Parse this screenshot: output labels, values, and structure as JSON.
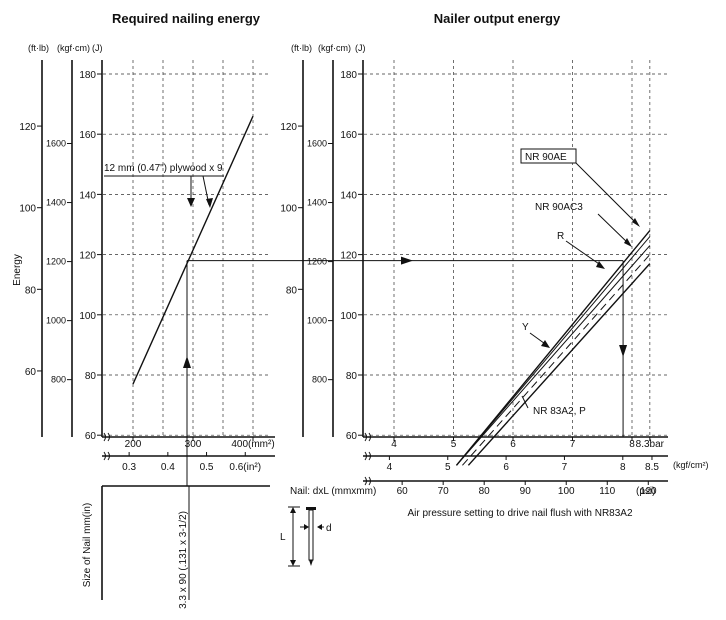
{
  "chart_data": [
    {
      "type": "line",
      "title": "Required nailing energy",
      "ylabel": "Energy",
      "y_units": {
        "ftlb": "(ft·lb)",
        "kgfcm": "(kgf·cm)",
        "j": "(J)"
      },
      "y_ticks_j": [
        "60",
        "80",
        "100",
        "120",
        "140",
        "160",
        "180"
      ],
      "y_ticks_kgfcm": [
        "800",
        "1000",
        "1200",
        "1400",
        "1600"
      ],
      "y_ticks_ftlb": [
        "60",
        "80",
        "100",
        "120"
      ],
      "x_ticks_mm2": [
        "200",
        "300",
        "400(mm²)"
      ],
      "x_ticks_in2": [
        "0.3",
        "0.4",
        "0.5",
        "0.6(in²)"
      ],
      "ylim_j": [
        50,
        186
      ],
      "xlim_mm2": [
        170,
        410
      ],
      "series": [
        {
          "name": "12 mm (0.47\") plywood x 9",
          "x_mm2": [
            200,
            400
          ],
          "y_j": [
            77,
            166
          ]
        }
      ],
      "reference": {
        "x_mm2": 290,
        "y_j": 118
      },
      "nail_panel": {
        "ylabel": "Size of Nail   mm(in)",
        "nail_label": "3.3 x 90 (.131 x 3-1/2)",
        "legend_title": "Nail: dxL (mmxmm)",
        "L": "L",
        "d": "d"
      }
    },
    {
      "type": "line",
      "title": "Nailer output energy",
      "y_units": {
        "ftlb": "(ft·lb)",
        "kgfcm": "(kgf·cm)",
        "j": "(J)"
      },
      "y_ticks_j": [
        "60",
        "80",
        "100",
        "120",
        "140",
        "160",
        "180"
      ],
      "y_ticks_kgfcm": [
        "800",
        "1000",
        "1200",
        "1400",
        "1600"
      ],
      "y_ticks_ftlb": [
        "80",
        "100",
        "120"
      ],
      "x_ticks_bar": [
        "4",
        "5",
        "6",
        "7",
        "8",
        "8.3bar"
      ],
      "x_ticks_kgfcm2": [
        "4",
        "5",
        "6",
        "7",
        "8",
        "8.5"
      ],
      "x_unit_kgfcm2": "(kgf/cm²)",
      "x_ticks_psi": [
        "60",
        "70",
        "80",
        "90",
        "100",
        "110",
        "120"
      ],
      "x_unit_psi": "(psi)",
      "xlabel": "Air pressure setting to drive nail flush with NR83A2",
      "ylim_j": [
        50,
        186
      ],
      "xlim_bar": [
        3.7,
        8.65
      ],
      "series": [
        {
          "name": "NR 90AE",
          "x_bar": [
            5.05,
            8.3
          ],
          "y_j": [
            50,
            128
          ]
        },
        {
          "name": "NR 90AC3",
          "x_bar": [
            5.05,
            8.3
          ],
          "y_j": [
            50,
            126
          ]
        },
        {
          "name": "R",
          "x_bar": [
            5.05,
            8.3
          ],
          "y_j": [
            50,
            123
          ]
        },
        {
          "name": "Y",
          "x_bar": [
            5.15,
            8.3
          ],
          "y_j": [
            50,
            120
          ]
        },
        {
          "name": "NR 83A2, P",
          "x_bar": [
            5.25,
            8.3
          ],
          "y_j": [
            50,
            117
          ]
        }
      ],
      "reference": {
        "y_j": 118,
        "x_bar": 7.85
      }
    }
  ]
}
